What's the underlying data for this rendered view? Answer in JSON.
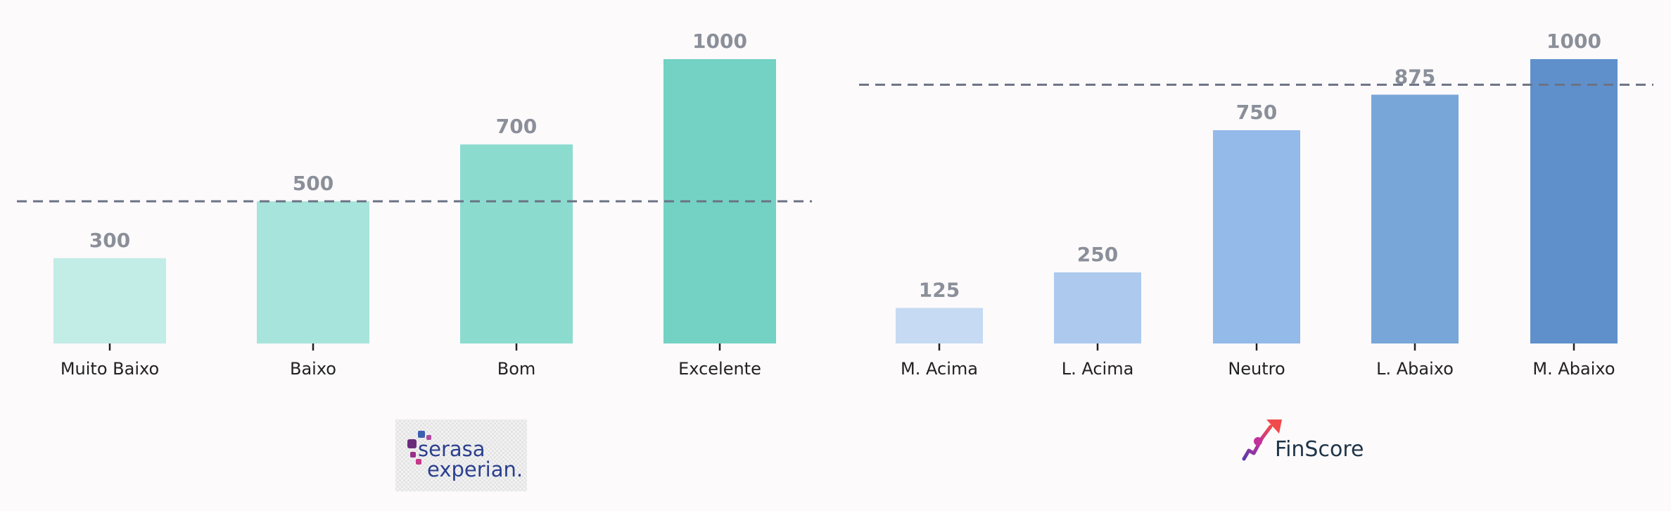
{
  "chart_data": [
    {
      "type": "bar",
      "categories": [
        "Muito Baixo",
        "Baixo",
        "Bom",
        "Excelente"
      ],
      "values": [
        300,
        500,
        700,
        1000
      ],
      "reference_line": 500,
      "ylim": [
        0,
        1000
      ],
      "colors": [
        "#c2ece6",
        "#a7e4db",
        "#8bdccf",
        "#73d2c3"
      ],
      "reference_color": "#6b7384",
      "logo": {
        "name": "serasa-experian-logo",
        "line1": "serasa",
        "line2": "experian."
      }
    },
    {
      "type": "bar",
      "categories": [
        "M. Acima",
        "L. Acima",
        "Neutro",
        "L. Abaixo",
        "M. Abaixo"
      ],
      "values": [
        125,
        250,
        750,
        875,
        1000
      ],
      "reference_line": 910,
      "ylim": [
        0,
        1000
      ],
      "colors": [
        "#c6daf3",
        "#adc9ee",
        "#93bae8",
        "#78a6d9",
        "#5f90cc"
      ],
      "reference_color": "#6b7384",
      "logo": {
        "name": "finscore-logo",
        "text": "FinScore"
      }
    }
  ]
}
